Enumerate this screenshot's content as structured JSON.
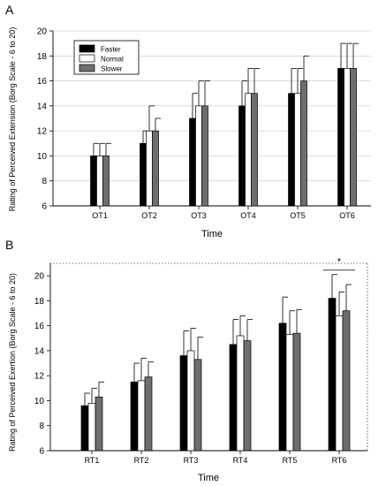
{
  "colors": {
    "faster": "#000000",
    "normal": "#ffffff",
    "slower": "#6e6e6e"
  },
  "chart_data": [
    {
      "panel_label": "A",
      "type": "bar",
      "xlabel": "Time",
      "ylabel": "Rating of Perceived Extension (Borg Scale - 6 to 20)",
      "ylim": [
        6,
        20
      ],
      "yticks": [
        6,
        8,
        10,
        12,
        14,
        16,
        18,
        20
      ],
      "categories": [
        "OT1",
        "OT2",
        "OT3",
        "OT4",
        "OT5",
        "OT6"
      ],
      "legend": {
        "position": "top-left",
        "entries": [
          "Faster",
          "Normal",
          "Slower"
        ]
      },
      "series": [
        {
          "name": "Faster",
          "color": "#000000",
          "values": [
            10,
            11,
            13,
            14,
            15,
            17
          ],
          "errors": [
            1,
            1,
            2,
            2,
            2,
            2
          ]
        },
        {
          "name": "Normal",
          "color": "#ffffff",
          "values": [
            10,
            12,
            14,
            15,
            15,
            17
          ],
          "errors": [
            1,
            2,
            2,
            2,
            2,
            2
          ]
        },
        {
          "name": "Slower",
          "color": "#6e6e6e",
          "values": [
            10,
            12,
            14,
            15,
            16,
            17
          ],
          "errors": [
            1,
            1,
            2,
            2,
            2,
            2
          ]
        }
      ],
      "annotations": []
    },
    {
      "panel_label": "B",
      "type": "bar",
      "xlabel": "Time",
      "ylabel": "Rating of Perceived Exertion (Borg Scale - 6 to 20)",
      "ylim": [
        6,
        21
      ],
      "yticks": [
        6,
        8,
        10,
        12,
        14,
        16,
        18,
        20
      ],
      "categories": [
        "RT1",
        "RT2",
        "RT3",
        "RT4",
        "RT5",
        "RT6"
      ],
      "series": [
        {
          "name": "Faster",
          "color": "#000000",
          "values": [
            9.6,
            11.5,
            13.6,
            14.5,
            16.2,
            18.2
          ],
          "errors": [
            1.0,
            1.5,
            2.0,
            2.0,
            2.1,
            1.9
          ]
        },
        {
          "name": "Normal",
          "color": "#ffffff",
          "values": [
            9.8,
            11.6,
            14.0,
            15.2,
            15.3,
            16.8
          ],
          "errors": [
            1.2,
            1.8,
            1.8,
            1.6,
            1.9,
            1.9
          ]
        },
        {
          "name": "Slower",
          "color": "#6e6e6e",
          "values": [
            10.3,
            11.9,
            13.3,
            14.8,
            15.4,
            17.2
          ],
          "errors": [
            1.2,
            1.2,
            1.8,
            1.7,
            1.9,
            2.1
          ]
        }
      ],
      "annotations": [
        {
          "text": "*",
          "category": "RT6"
        }
      ]
    }
  ]
}
